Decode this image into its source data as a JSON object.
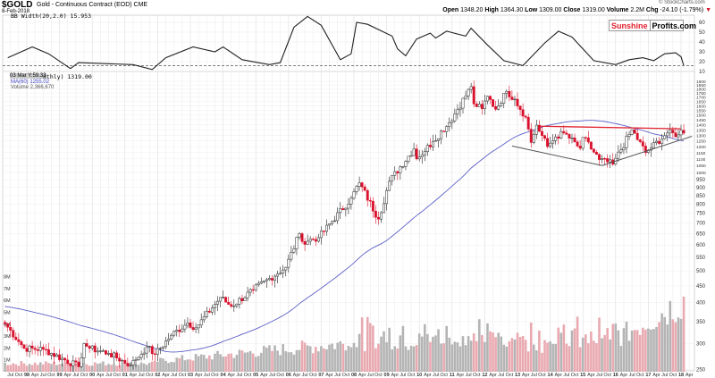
{
  "header": {
    "symbol": "$GOLD",
    "name": "Gold - Continuous Contract (EOD) CME",
    "date": "8-Feb-2018",
    "copyright": "© StockCharts.com",
    "quote": {
      "open_label": "Open",
      "open": "1348.20",
      "high_label": "High",
      "high": "1364.30",
      "low_label": "Low",
      "low": "1309.00",
      "close_label": "Close",
      "close": "1319.00",
      "volume_label": "Volume",
      "volume": "2.2M",
      "chg_label": "Chg",
      "chg": "-24.10 (-1.79%)",
      "chg_arrow": "▼"
    }
  },
  "logo": {
    "part1": "Sunshine",
    "part2": "Profits.com"
  },
  "legend": {
    "bb": "BB Width(20,2.0) 15.953",
    "cursor": "03 Mar Y:59.33",
    "price": "nthly) 1319.00",
    "ma": "MA(60) 1255.02",
    "volume": "Volume 2,366,670"
  },
  "colors": {
    "up": "#ffffff",
    "down": "#d9112c",
    "ma": "#5b5fc7",
    "vol_down": "#e9a9b0",
    "vol_up": "#b4b4b4",
    "resistance": "#e0222f"
  },
  "chart_data": [
    {
      "type": "line",
      "title": "BB Width(20,2.0)",
      "y_ticks": [
        10,
        20,
        30,
        40,
        50,
        60
      ],
      "reference_level": 16,
      "points": [
        [
          5,
          24
        ],
        [
          14,
          35
        ],
        [
          20,
          28
        ],
        [
          28,
          13
        ],
        [
          31,
          19
        ],
        [
          51,
          17
        ],
        [
          58,
          12
        ],
        [
          63,
          24
        ],
        [
          73,
          35
        ],
        [
          81,
          30
        ],
        [
          84,
          35
        ],
        [
          91,
          22
        ],
        [
          101,
          17
        ],
        [
          105,
          19
        ],
        [
          110,
          55
        ],
        [
          115,
          66
        ],
        [
          120,
          57
        ],
        [
          127,
          22
        ],
        [
          131,
          28
        ],
        [
          133,
          60
        ],
        [
          137,
          58
        ],
        [
          146,
          46
        ],
        [
          148,
          33
        ],
        [
          151,
          26
        ],
        [
          155,
          43
        ],
        [
          160,
          49
        ],
        [
          162,
          44
        ],
        [
          166,
          51
        ],
        [
          173,
          46
        ],
        [
          175,
          54
        ],
        [
          181,
          37
        ],
        [
          187,
          21
        ],
        [
          194,
          16
        ],
        [
          202,
          39
        ],
        [
          207,
          51
        ],
        [
          212,
          45
        ],
        [
          220,
          21
        ],
        [
          228,
          17
        ],
        [
          233,
          22
        ],
        [
          238,
          24
        ],
        [
          242,
          21
        ],
        [
          246,
          28
        ],
        [
          250,
          29
        ],
        [
          252,
          25
        ],
        [
          253,
          16
        ]
      ]
    },
    {
      "type": "candlestick",
      "title": "$GOLD Monthly",
      "scale": "log",
      "ylim": [
        250,
        1950
      ],
      "y_ticks": [
        250,
        300,
        350,
        400,
        450,
        500,
        550,
        600,
        650,
        700,
        750,
        800,
        850,
        900,
        950,
        1000,
        1050,
        1100,
        1150,
        1200,
        1250,
        1300,
        1350,
        1400,
        1450,
        1500,
        1550,
        1600,
        1650,
        1700,
        1750,
        1800,
        1850,
        1900
      ],
      "x_start": "May 1997",
      "x_end": "Feb 2018",
      "month_index_base": "Jan 1997 = 0",
      "x_labels": [
        "Jul",
        "Oct",
        "98",
        "Apr",
        "Jul",
        "Oct",
        "99",
        "Apr",
        "Jul",
        "Oct",
        "00",
        "Apr",
        "Jul",
        "Oct",
        "01",
        "Apr",
        "Jul",
        "Oct",
        "02",
        "Apr",
        "Jul",
        "Oct",
        "03",
        "Apr",
        "Jul",
        "Oct",
        "04",
        "Apr",
        "Jul",
        "Oct",
        "05",
        "Apr",
        "Jul",
        "Oct",
        "06",
        "Apr",
        "Jul",
        "Oct",
        "07",
        "Apr",
        "Jul",
        "Oct",
        "08",
        "Apr",
        "Jul",
        "Oct",
        "09",
        "Apr",
        "Jul",
        "Oct",
        "10",
        "Apr",
        "Jul",
        "Oct",
        "11",
        "Apr",
        "Jul",
        "Oct",
        "12",
        "Apr",
        "Jul",
        "Oct",
        "13",
        "Apr",
        "Jul",
        "Oct",
        "14",
        "Apr",
        "Jul",
        "Oct",
        "15",
        "Apr",
        "Jul",
        "Oct",
        "16",
        "Apr",
        "Jul",
        "Oct",
        "17",
        "Apr",
        "Jul",
        "Oct",
        "18",
        "Apr",
        "Jul"
      ],
      "close_anchors": [
        [
          4,
          345
        ],
        [
          11,
          290
        ],
        [
          18,
          288
        ],
        [
          31,
          255
        ],
        [
          33,
          300
        ],
        [
          35,
          290
        ],
        [
          42,
          280
        ],
        [
          50,
          258
        ],
        [
          52,
          268
        ],
        [
          56,
          293
        ],
        [
          59,
          278
        ],
        [
          65,
          318
        ],
        [
          71,
          347
        ],
        [
          74,
          335
        ],
        [
          83,
          415
        ],
        [
          87,
          390
        ],
        [
          95,
          437
        ],
        [
          107,
          513
        ],
        [
          112,
          650
        ],
        [
          113,
          615
        ],
        [
          119,
          632
        ],
        [
          131,
          834
        ],
        [
          134,
          930
        ],
        [
          141,
          720
        ],
        [
          145,
          940
        ],
        [
          154,
          1180
        ],
        [
          155,
          1100
        ],
        [
          161,
          1245
        ],
        [
          167,
          1420
        ],
        [
          175,
          1830
        ],
        [
          176,
          1620
        ],
        [
          179,
          1565
        ],
        [
          181,
          1710
        ],
        [
          184,
          1560
        ],
        [
          188,
          1770
        ],
        [
          191,
          1675
        ],
        [
          195,
          1475
        ],
        [
          197,
          1235
        ],
        [
          199,
          1395
        ],
        [
          203,
          1200
        ],
        [
          206,
          1285
        ],
        [
          209,
          1320
        ],
        [
          215,
          1185
        ],
        [
          216,
          1280
        ],
        [
          222,
          1095
        ],
        [
          227,
          1060
        ],
        [
          234,
          1350
        ],
        [
          239,
          1150
        ],
        [
          247,
          1320
        ],
        [
          251,
          1303
        ],
        [
          252,
          1345
        ],
        [
          253,
          1319
        ]
      ],
      "ma_period": 60,
      "last_close": 1319.0,
      "trendlines": [
        {
          "name": "resistance",
          "from": [
            200,
            1385
          ],
          "to": [
            252,
            1360
          ]
        },
        {
          "name": "support-left",
          "from": [
            190,
            1205
          ],
          "to": [
            223,
            1050
          ]
        },
        {
          "name": "support-right",
          "from": [
            223,
            1050
          ],
          "to": [
            256,
            1290
          ]
        }
      ]
    },
    {
      "type": "bar",
      "title": "Volume",
      "y_ticks_label": [
        "1M",
        "2M",
        "3M",
        "4M",
        "5M",
        "6M",
        "7M",
        "8M"
      ],
      "y_ticks": [
        1,
        2,
        3,
        4,
        5,
        6,
        7,
        8
      ],
      "unit": "M",
      "last": 2.37
    }
  ]
}
